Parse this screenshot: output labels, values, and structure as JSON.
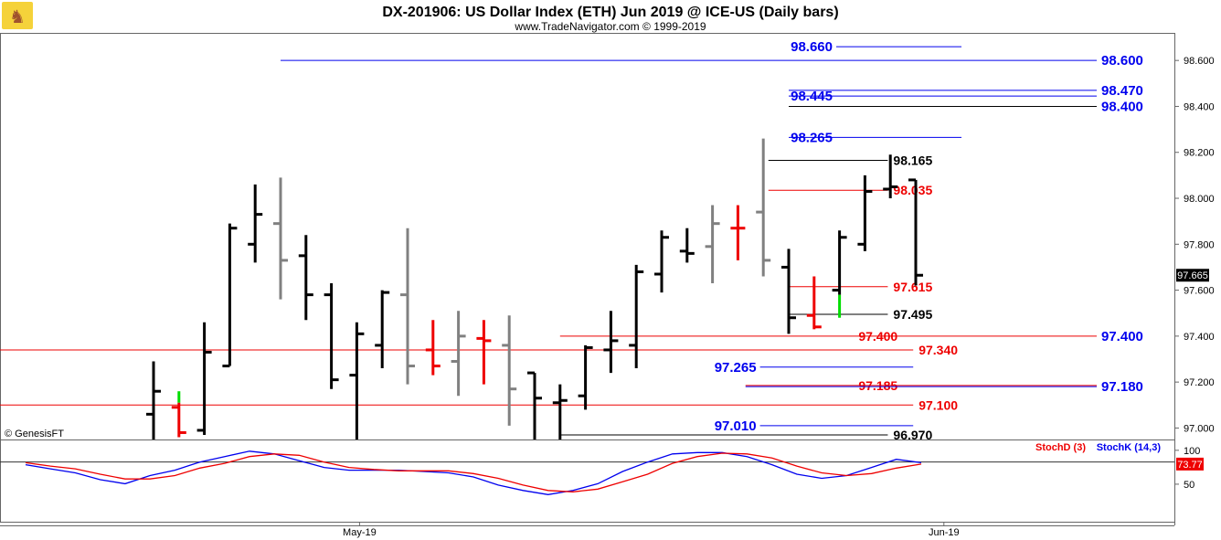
{
  "header": {
    "title": "DX-201906:  US Dollar Index (ETH) Jun 2019 @ ICE-US  (Daily bars)",
    "subtitle": "www.TradeNavigator.com © 1999-2019"
  },
  "credit": "© GenesisFT",
  "colors": {
    "blue": "#0000ee",
    "red": "#ee0000",
    "black": "#000000",
    "gray": "#808080",
    "green": "#00dd00"
  },
  "chart_data": [
    {
      "type": "bar",
      "subtype": "ohlc",
      "title": "DX-201906:  US Dollar Index (ETH) Jun 2019 @ ICE-US  (Daily bars)",
      "ylim": [
        96.95,
        98.72
      ],
      "y_ticks": [
        "97.000",
        "97.200",
        "97.400",
        "97.600",
        "97.800",
        "98.000",
        "98.200",
        "98.400",
        "98.600"
      ],
      "y_tick_values": [
        97.0,
        97.2,
        97.4,
        97.6,
        97.8,
        98.0,
        98.2,
        98.4,
        98.6
      ],
      "x_labels": [
        {
          "label": "May-19",
          "index": 8
        },
        {
          "label": "Jun-19",
          "index": 31
        }
      ],
      "n_slots": 38,
      "last_price_label": "97.665",
      "bars": [
        {
          "i": 0,
          "o": 97.06,
          "h": 97.29,
          "l": 96.95,
          "c": 97.16,
          "color": "black"
        },
        {
          "i": 1,
          "o": 97.09,
          "h": 97.16,
          "l": 96.96,
          "c": 96.98,
          "color": "red",
          "low_green": false,
          "top_green": true
        },
        {
          "i": 2,
          "o": 96.99,
          "h": 97.46,
          "l": 96.97,
          "c": 97.33,
          "color": "black"
        },
        {
          "i": 3,
          "o": 97.27,
          "h": 97.89,
          "l": 97.27,
          "c": 97.87,
          "color": "black"
        },
        {
          "i": 4,
          "o": 97.8,
          "h": 98.06,
          "l": 97.72,
          "c": 97.93,
          "color": "black"
        },
        {
          "i": 5,
          "o": 97.89,
          "h": 98.09,
          "l": 97.56,
          "c": 97.73,
          "color": "gray"
        },
        {
          "i": 6,
          "o": 97.75,
          "h": 97.84,
          "l": 97.47,
          "c": 97.58,
          "color": "black"
        },
        {
          "i": 7,
          "o": 97.58,
          "h": 97.63,
          "l": 97.17,
          "c": 97.21,
          "color": "black"
        },
        {
          "i": 8,
          "o": 97.23,
          "h": 97.46,
          "l": 96.95,
          "c": 97.41,
          "color": "black"
        },
        {
          "i": 9,
          "o": 97.36,
          "h": 97.6,
          "l": 97.26,
          "c": 97.59,
          "color": "black"
        },
        {
          "i": 10,
          "o": 97.58,
          "h": 97.87,
          "l": 97.19,
          "c": 97.27,
          "color": "gray"
        },
        {
          "i": 11,
          "o": 97.34,
          "h": 97.47,
          "l": 97.23,
          "c": 97.27,
          "color": "red"
        },
        {
          "i": 12,
          "o": 97.29,
          "h": 97.51,
          "l": 97.14,
          "c": 97.4,
          "color": "gray"
        },
        {
          "i": 13,
          "o": 97.39,
          "h": 97.47,
          "l": 97.19,
          "c": 97.38,
          "color": "red"
        },
        {
          "i": 14,
          "o": 97.36,
          "h": 97.49,
          "l": 97.01,
          "c": 97.17,
          "color": "gray"
        },
        {
          "i": 15,
          "o": 97.24,
          "h": 97.24,
          "l": 96.95,
          "c": 97.13,
          "color": "black"
        },
        {
          "i": 16,
          "o": 97.11,
          "h": 97.19,
          "l": 96.95,
          "c": 97.12,
          "color": "black"
        },
        {
          "i": 17,
          "o": 97.14,
          "h": 97.36,
          "l": 97.08,
          "c": 97.35,
          "color": "black"
        },
        {
          "i": 18,
          "o": 97.34,
          "h": 97.51,
          "l": 97.24,
          "c": 97.38,
          "color": "black"
        },
        {
          "i": 19,
          "o": 97.36,
          "h": 97.71,
          "l": 97.26,
          "c": 97.68,
          "color": "black"
        },
        {
          "i": 20,
          "o": 97.67,
          "h": 97.86,
          "l": 97.59,
          "c": 97.83,
          "color": "black"
        },
        {
          "i": 21,
          "o": 97.77,
          "h": 97.87,
          "l": 97.72,
          "c": 97.76,
          "color": "black"
        },
        {
          "i": 22,
          "o": 97.79,
          "h": 97.97,
          "l": 97.63,
          "c": 97.89,
          "color": "gray"
        },
        {
          "i": 23,
          "o": 97.87,
          "h": 97.97,
          "l": 97.73,
          "c": 97.87,
          "color": "red"
        },
        {
          "i": 24,
          "o": 97.94,
          "h": 98.26,
          "l": 97.66,
          "c": 97.73,
          "color": "gray"
        },
        {
          "i": 25,
          "o": 97.7,
          "h": 97.78,
          "l": 97.41,
          "c": 97.48,
          "color": "black"
        },
        {
          "i": 26,
          "o": 97.49,
          "h": 97.66,
          "l": 97.43,
          "c": 97.44,
          "color": "red"
        },
        {
          "i": 27,
          "o": 97.6,
          "h": 97.86,
          "l": 97.48,
          "c": 97.83,
          "color": "black",
          "low_green": true
        },
        {
          "i": 28,
          "o": 97.8,
          "h": 98.1,
          "l": 97.77,
          "c": 98.03,
          "color": "black"
        },
        {
          "i": 29,
          "o": 98.04,
          "h": 98.19,
          "l": 98.0,
          "c": 98.05,
          "color": "black"
        },
        {
          "i": 30,
          "o": 98.08,
          "h": 98.08,
          "l": 97.62,
          "c": 97.665,
          "color": "black"
        }
      ],
      "levels": [
        {
          "label": "98.660",
          "value": 98.66,
          "color": "blue",
          "x_start": "label",
          "x_end": 31.8,
          "label_side": "left",
          "label_at": 25
        },
        {
          "label": "98.600",
          "value": 98.6,
          "color": "blue",
          "x_start": 5,
          "x_end": "axis",
          "label_side": "right"
        },
        {
          "label": "98.470",
          "value": 98.47,
          "color": "blue",
          "x_start": 25,
          "x_end": "axis",
          "label_side": "right"
        },
        {
          "label": "98.445",
          "value": 98.445,
          "color": "blue",
          "x_start": 25,
          "x_end": "axis",
          "label_side": "left",
          "label_at": 25
        },
        {
          "label": "98.400",
          "value": 98.4,
          "color": "black_thin",
          "x_start": 25,
          "x_end": "axis",
          "label_side": "right"
        },
        {
          "label": "98.265",
          "value": 98.265,
          "color": "blue",
          "x_start": 25,
          "x_end": 31.8,
          "label_side": "left",
          "label_at": 25
        },
        {
          "label": "98.165",
          "value": 98.165,
          "color": "black",
          "x_start": 24.2,
          "x_end": 28.9,
          "label_side": "right_of_line"
        },
        {
          "label": "98.035",
          "value": 98.035,
          "color": "red",
          "x_start": 24.2,
          "x_end": 28.9,
          "label_side": "right_of_line"
        },
        {
          "label": "97.615",
          "value": 97.615,
          "color": "red",
          "x_start": 25,
          "x_end": 28.9,
          "label_side": "right_of_line"
        },
        {
          "label": "97.495",
          "value": 97.495,
          "color": "black",
          "x_start": 25,
          "x_end": 28.9,
          "label_side": "right_of_line"
        },
        {
          "label": "97.400",
          "value": 97.4,
          "color": "red",
          "x_start": 16,
          "x_end": "axis",
          "label_side": "mid",
          "label_at": 29
        },
        {
          "label": "97.400",
          "value": 97.4,
          "color": "blue",
          "x_start": null,
          "x_end": null,
          "label_side": "right"
        },
        {
          "label": "97.340",
          "value": 97.34,
          "color": "red",
          "x_start": "left",
          "x_end": 29.9,
          "label_side": "right_of_line"
        },
        {
          "label": "97.265",
          "value": 97.265,
          "color": "blue",
          "x_start": "label",
          "x_end": 29.9,
          "label_side": "left",
          "label_at": 22
        },
        {
          "label": "97.185",
          "value": 97.185,
          "color": "red",
          "x_start": 23.3,
          "x_end": "axis",
          "label_side": "mid",
          "label_at": 29
        },
        {
          "label": "97.180",
          "value": 97.18,
          "color": "blue",
          "x_start": 23.3,
          "x_end": "axis",
          "label_side": "right"
        },
        {
          "label": "97.100",
          "value": 97.1,
          "color": "red",
          "x_start": "left",
          "x_end": 29.9,
          "label_side": "right_of_line"
        },
        {
          "label": "97.010",
          "value": 97.01,
          "color": "blue",
          "x_start": "label",
          "x_end": 29.9,
          "label_side": "left",
          "label_at": 22
        },
        {
          "label": "96.970",
          "value": 96.97,
          "color": "black",
          "x_start": 16,
          "x_end": 28.9,
          "label_side": "right_of_line"
        }
      ]
    },
    {
      "type": "line",
      "ylim": [
        0,
        120
      ],
      "y_ticks": [
        "100",
        "50"
      ],
      "y_tick_values": [
        100,
        50
      ],
      "reference_line": 80,
      "last_value_label": "73.77",
      "series": [
        {
          "name": "StochK (14,3)",
          "color": "blue",
          "values": [
            76,
            70,
            64,
            54,
            48,
            60,
            68,
            80,
            88,
            96,
            92,
            82,
            72,
            68,
            68,
            68,
            66,
            64,
            58,
            46,
            38,
            32,
            38,
            48,
            66,
            80,
            92,
            94,
            94,
            88,
            76,
            62,
            56,
            60,
            72,
            84,
            79
          ]
        },
        {
          "name": "StochD (3)",
          "color": "red",
          "values": [
            79,
            74,
            70,
            62,
            55,
            55,
            60,
            71,
            78,
            88,
            92,
            90,
            80,
            72,
            69,
            67,
            67,
            67,
            63,
            56,
            46,
            38,
            36,
            40,
            51,
            62,
            78,
            88,
            93,
            92,
            86,
            74,
            64,
            60,
            63,
            71,
            77
          ]
        }
      ]
    }
  ]
}
